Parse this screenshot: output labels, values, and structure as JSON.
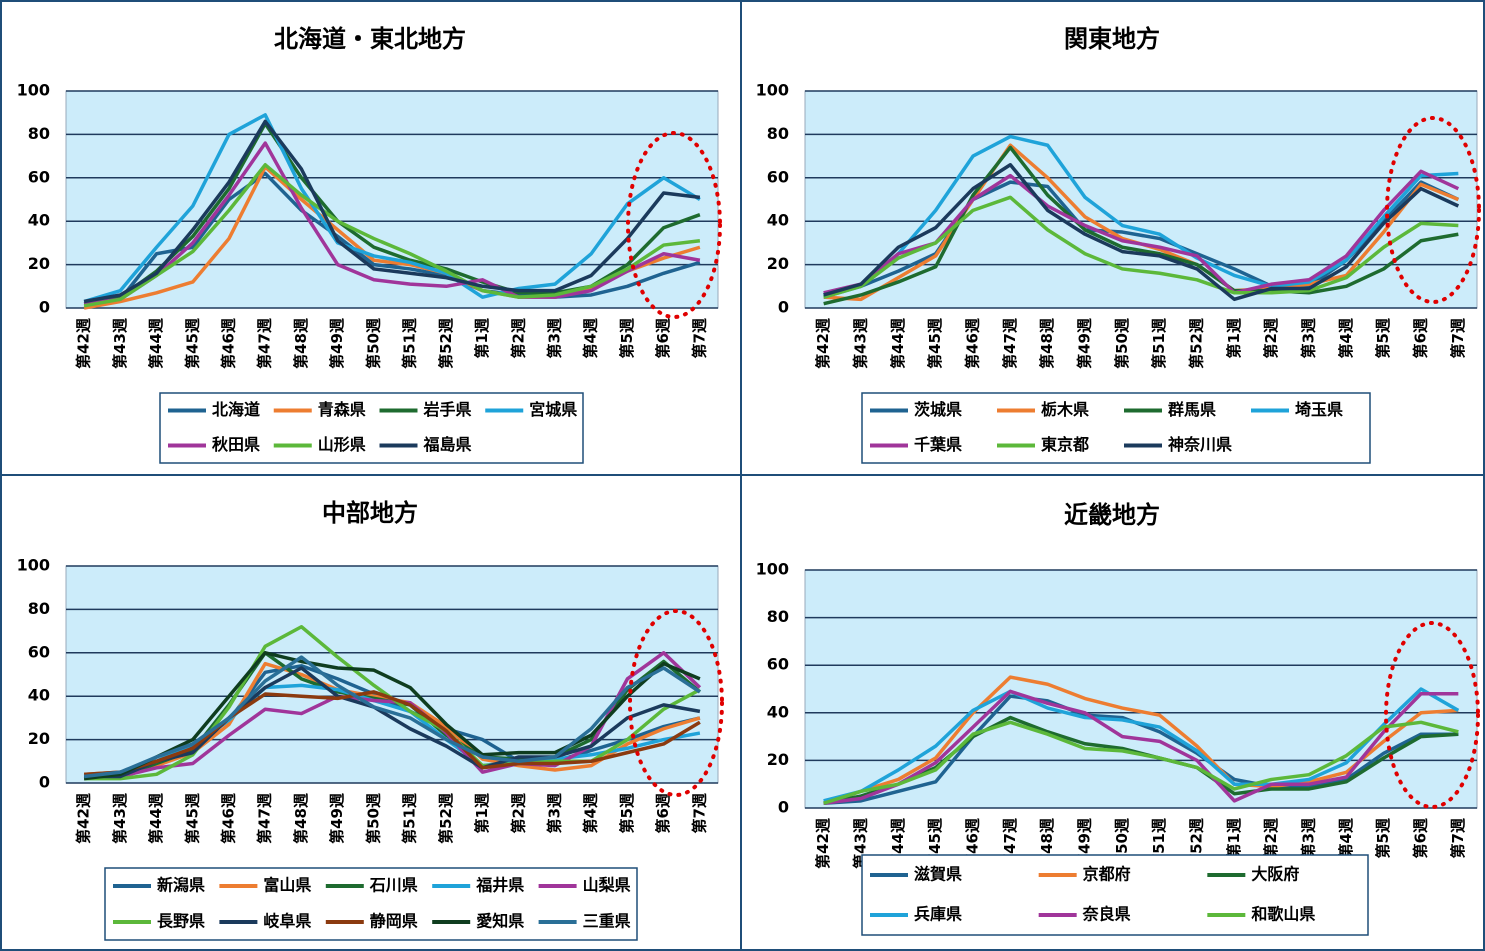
{
  "chart_data": [
    {
      "type": "line",
      "title": "北海道・東北地方",
      "categories": [
        "第42週",
        "第43週",
        "第44週",
        "第45週",
        "第46週",
        "第47週",
        "第48週",
        "第49週",
        "第50週",
        "第51週",
        "第52週",
        "第1週",
        "第2週",
        "第3週",
        "第4週",
        "第5週",
        "第6週",
        "第7週"
      ],
      "ylim": [
        0,
        100
      ],
      "yticks": [
        0,
        20,
        40,
        60,
        80,
        100
      ],
      "grid": true,
      "series": [
        {
          "name": "北海道",
          "color": "#1f6391",
          "values": [
            2,
            4,
            25,
            28,
            50,
            62,
            45,
            33,
            20,
            18,
            15,
            8,
            6,
            5,
            6,
            10,
            16,
            21
          ]
        },
        {
          "name": "青森県",
          "color": "#ed7d31",
          "values": [
            0,
            3,
            7,
            12,
            32,
            65,
            50,
            36,
            22,
            20,
            16,
            8,
            5,
            5,
            9,
            17,
            23,
            28
          ]
        },
        {
          "name": "岩手県",
          "color": "#1e6b2f",
          "values": [
            2,
            5,
            17,
            33,
            55,
            85,
            60,
            40,
            28,
            22,
            18,
            12,
            7,
            7,
            10,
            20,
            37,
            43
          ]
        },
        {
          "name": "宮城県",
          "color": "#1fa3d9",
          "values": [
            3,
            8,
            28,
            47,
            80,
            89,
            55,
            30,
            24,
            21,
            16,
            5,
            9,
            11,
            25,
            48,
            60,
            50
          ]
        },
        {
          "name": "秋田県",
          "color": "#a0359a",
          "values": [
            2,
            4,
            15,
            30,
            52,
            76,
            46,
            20,
            13,
            11,
            10,
            13,
            5,
            5,
            8,
            17,
            25,
            22
          ]
        },
        {
          "name": "山形県",
          "color": "#5cb83a",
          "values": [
            1,
            4,
            15,
            26,
            45,
            66,
            52,
            40,
            32,
            25,
            17,
            8,
            5,
            6,
            10,
            18,
            29,
            31
          ]
        },
        {
          "name": "福島県",
          "color": "#1b3a5c",
          "values": [
            3,
            6,
            16,
            36,
            58,
            86,
            64,
            31,
            18,
            16,
            14,
            10,
            8,
            8,
            15,
            32,
            53,
            51
          ]
        }
      ]
    },
    {
      "type": "line",
      "title": "関東地方",
      "categories": [
        "第42週",
        "第43週",
        "第44週",
        "第45週",
        "第46週",
        "第47週",
        "第48週",
        "第49週",
        "第50週",
        "第51週",
        "第52週",
        "第1週",
        "第2週",
        "第3週",
        "第4週",
        "第5週",
        "第6週",
        "第7週"
      ],
      "ylim": [
        0,
        100
      ],
      "yticks": [
        0,
        20,
        40,
        60,
        80,
        100
      ],
      "grid": true,
      "series": [
        {
          "name": "茨城県",
          "color": "#1f6391",
          "values": [
            6,
            10,
            17,
            25,
            50,
            58,
            56,
            36,
            35,
            32,
            25,
            18,
            10,
            10,
            22,
            40,
            58,
            50
          ]
        },
        {
          "name": "栃木県",
          "color": "#ed7d31",
          "values": [
            5,
            4,
            14,
            24,
            50,
            75,
            60,
            42,
            32,
            27,
            20,
            8,
            9,
            11,
            15,
            35,
            57,
            50
          ]
        },
        {
          "name": "群馬県",
          "color": "#1e6b2f",
          "values": [
            2,
            6,
            12,
            19,
            52,
            74,
            52,
            36,
            28,
            25,
            20,
            8,
            8,
            7,
            10,
            18,
            31,
            34
          ]
        },
        {
          "name": "埼玉県",
          "color": "#1fa3d9",
          "values": [
            5,
            10,
            25,
            45,
            70,
            79,
            75,
            51,
            38,
            34,
            23,
            15,
            10,
            12,
            22,
            42,
            61,
            62
          ]
        },
        {
          "name": "千葉県",
          "color": "#a0359a",
          "values": [
            7,
            11,
            25,
            30,
            50,
            61,
            47,
            38,
            31,
            28,
            24,
            7,
            11,
            13,
            24,
            45,
            63,
            55
          ]
        },
        {
          "name": "東京都",
          "color": "#5cb83a",
          "values": [
            5,
            10,
            23,
            30,
            45,
            51,
            36,
            25,
            18,
            16,
            13,
            7,
            7,
            8,
            14,
            28,
            39,
            38
          ]
        },
        {
          "name": "神奈川県",
          "color": "#1b3a5c",
          "values": [
            6,
            11,
            28,
            37,
            55,
            66,
            45,
            34,
            26,
            24,
            18,
            4,
            9,
            9,
            19,
            39,
            55,
            47
          ]
        }
      ]
    },
    {
      "type": "line",
      "title": "中部地方",
      "categories": [
        "第42週",
        "第43週",
        "第44週",
        "第45週",
        "第46週",
        "第47週",
        "第48週",
        "第49週",
        "第50週",
        "第51週",
        "第52週",
        "第1週",
        "第2週",
        "第3週",
        "第4週",
        "第5週",
        "第6週",
        "第7週"
      ],
      "ylim": [
        0,
        100
      ],
      "yticks": [
        0,
        20,
        40,
        60,
        80,
        100
      ],
      "grid": true,
      "series": [
        {
          "name": "新潟県",
          "color": "#1f6391",
          "values": [
            3,
            3,
            10,
            17,
            29,
            51,
            54,
            48,
            41,
            33,
            25,
            20,
            10,
            10,
            15,
            20,
            26,
            30
          ]
        },
        {
          "name": "富山県",
          "color": "#ed7d31",
          "values": [
            4,
            5,
            8,
            14,
            27,
            55,
            50,
            43,
            40,
            37,
            26,
            11,
            8,
            6,
            8,
            18,
            25,
            30
          ]
        },
        {
          "name": "石川県",
          "color": "#1e6b2f",
          "values": [
            2,
            3,
            9,
            15,
            36,
            60,
            48,
            42,
            39,
            36,
            22,
            12,
            11,
            12,
            20,
            43,
            56,
            42
          ]
        },
        {
          "name": "福井県",
          "color": "#1fa3d9",
          "values": [
            3,
            4,
            10,
            18,
            29,
            44,
            45,
            43,
            38,
            33,
            20,
            8,
            10,
            11,
            13,
            16,
            20,
            23
          ]
        },
        {
          "name": "山梨県",
          "color": "#a0359a",
          "values": [
            3,
            3,
            7,
            9,
            22,
            34,
            32,
            40,
            38,
            37,
            23,
            5,
            9,
            8,
            17,
            48,
            60,
            44
          ]
        },
        {
          "name": "長野県",
          "color": "#5cb83a",
          "values": [
            2,
            2,
            4,
            13,
            35,
            63,
            72,
            58,
            45,
            33,
            24,
            8,
            9,
            10,
            10,
            20,
            34,
            43
          ]
        },
        {
          "name": "岐阜県",
          "color": "#1b3a5c",
          "values": [
            3,
            3,
            10,
            14,
            30,
            44,
            53,
            40,
            35,
            25,
            17,
            7,
            12,
            12,
            17,
            30,
            36,
            33
          ]
        },
        {
          "name": "静岡県",
          "color": "#8b3a0f",
          "values": [
            4,
            5,
            10,
            16,
            30,
            41,
            40,
            39,
            42,
            36,
            24,
            7,
            9,
            9,
            10,
            14,
            18,
            28
          ]
        },
        {
          "name": "愛知県",
          "color": "#0f3d1f",
          "values": [
            2,
            4,
            12,
            20,
            40,
            60,
            56,
            53,
            52,
            44,
            27,
            13,
            14,
            14,
            22,
            40,
            55,
            48
          ]
        },
        {
          "name": "三重県",
          "color": "#2a6f97",
          "values": [
            3,
            5,
            12,
            18,
            30,
            47,
            58,
            45,
            35,
            30,
            20,
            12,
            10,
            12,
            25,
            44,
            53,
            42
          ]
        }
      ]
    },
    {
      "type": "line",
      "title": "近畿地方",
      "categories": [
        "第42週",
        "第43週",
        "第44週",
        "第45週",
        "第46週",
        "第47週",
        "第48週",
        "第49週",
        "第50週",
        "第51週",
        "第52週",
        "第1週",
        "第2週",
        "第3週",
        "第4週",
        "第5週",
        "第6週",
        "第7週"
      ],
      "ylim": [
        0,
        100
      ],
      "yticks": [
        0,
        20,
        40,
        60,
        80,
        100
      ],
      "grid": true,
      "series": [
        {
          "name": "滋賀県",
          "color": "#1f6391",
          "values": [
            2,
            3,
            7,
            11,
            30,
            47,
            45,
            39,
            38,
            32,
            23,
            12,
            9,
            9,
            12,
            23,
            31,
            31
          ]
        },
        {
          "name": "京都府",
          "color": "#ed7d31",
          "values": [
            2,
            7,
            12,
            21,
            40,
            55,
            52,
            46,
            42,
            39,
            26,
            10,
            9,
            11,
            15,
            28,
            40,
            41
          ]
        },
        {
          "name": "大阪府",
          "color": "#1e6b2f",
          "values": [
            2,
            5,
            10,
            17,
            30,
            38,
            32,
            27,
            25,
            21,
            17,
            6,
            8,
            8,
            11,
            21,
            30,
            31
          ]
        },
        {
          "name": "兵庫県",
          "color": "#1fa3d9",
          "values": [
            3,
            7,
            16,
            26,
            41,
            49,
            42,
            38,
            37,
            34,
            24,
            10,
            10,
            12,
            19,
            35,
            50,
            41
          ]
        },
        {
          "name": "奈良県",
          "color": "#a0359a",
          "values": [
            2,
            4,
            10,
            19,
            34,
            49,
            44,
            40,
            30,
            28,
            20,
            3,
            10,
            10,
            13,
            32,
            48,
            48
          ]
        },
        {
          "name": "和歌山県",
          "color": "#5cb83a",
          "values": [
            2,
            7,
            10,
            16,
            31,
            36,
            31,
            25,
            24,
            21,
            17,
            8,
            12,
            14,
            22,
            34,
            36,
            32
          ]
        }
      ]
    }
  ]
}
